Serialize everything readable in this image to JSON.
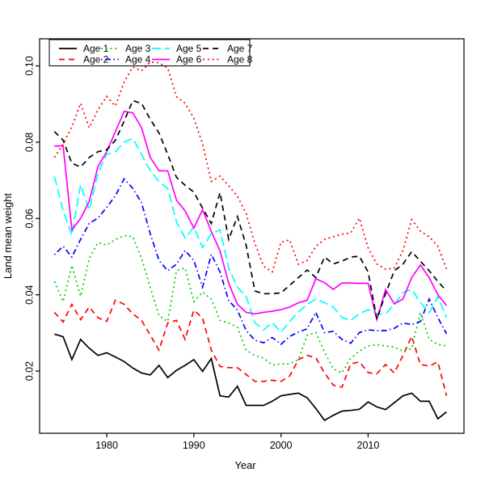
{
  "figure": {
    "background": "#ffffff",
    "xlabel": "Year",
    "ylabel": "Land mean weight"
  },
  "chart_data": {
    "type": "line",
    "title": "",
    "xlabel": "Year",
    "ylabel": "Land mean weight",
    "grid": false,
    "legend_position": "top-left",
    "legend_columns": 4,
    "xlim": [
      1972.3,
      2021.0
    ],
    "ylim": [
      0.0037,
      0.1071
    ],
    "x_ticks": [
      1980,
      1990,
      2000,
      2010
    ],
    "y_ticks": [
      0.02,
      0.04,
      0.06,
      0.08,
      0.1
    ],
    "y_tick_labels": [
      "0.02",
      "0.04",
      "0.06",
      "0.08",
      "0.10"
    ],
    "x": [
      1974,
      1975,
      1976,
      1977,
      1978,
      1979,
      1980,
      1981,
      1982,
      1983,
      1984,
      1985,
      1986,
      1987,
      1988,
      1989,
      1990,
      1991,
      1992,
      1993,
      1994,
      1995,
      1996,
      1997,
      1998,
      1999,
      2000,
      2001,
      2002,
      2003,
      2004,
      2005,
      2006,
      2007,
      2008,
      2009,
      2010,
      2011,
      2012,
      2013,
      2014,
      2015,
      2016,
      2017,
      2018,
      2019
    ],
    "series": [
      {
        "name": "Age 1",
        "color": "#000000",
        "linetype": "solid",
        "values": [
          0.0297,
          0.029,
          0.023,
          0.0283,
          0.026,
          0.0241,
          0.0248,
          0.0237,
          0.0225,
          0.0208,
          0.0195,
          0.019,
          0.0215,
          0.0183,
          0.0202,
          0.0215,
          0.023,
          0.0199,
          0.0233,
          0.0135,
          0.0132,
          0.016,
          0.011,
          0.011,
          0.011,
          0.0121,
          0.0135,
          0.0139,
          0.0142,
          0.013,
          0.0102,
          0.0071,
          0.0084,
          0.0095,
          0.0097,
          0.01,
          0.0119,
          0.0106,
          0.0099,
          0.0117,
          0.0135,
          0.0142,
          0.0121,
          0.0121,
          0.0075,
          0.0093
        ]
      },
      {
        "name": "Age 2",
        "color": "#FF0000",
        "linetype": "dashed",
        "values": [
          0.0354,
          0.0329,
          0.0375,
          0.0335,
          0.0368,
          0.034,
          0.033,
          0.0386,
          0.0375,
          0.035,
          0.0333,
          0.0294,
          0.0255,
          0.0326,
          0.0333,
          0.0283,
          0.036,
          0.0339,
          0.0255,
          0.0212,
          0.0209,
          0.0209,
          0.0191,
          0.0173,
          0.0173,
          0.0176,
          0.0173,
          0.0187,
          0.023,
          0.0241,
          0.0235,
          0.0195,
          0.0163,
          0.0158,
          0.0219,
          0.0224,
          0.0196,
          0.0193,
          0.0217,
          0.0195,
          0.0241,
          0.0291,
          0.0217,
          0.0213,
          0.0224,
          0.0135
        ]
      },
      {
        "name": "Age 3",
        "color": "#00CD00",
        "linetype": "dotted",
        "values": [
          0.0435,
          0.0382,
          0.0477,
          0.0396,
          0.0495,
          0.0537,
          0.053,
          0.0545,
          0.0555,
          0.0552,
          0.0495,
          0.042,
          0.0345,
          0.033,
          0.0463,
          0.047,
          0.0382,
          0.0407,
          0.0389,
          0.0333,
          0.0326,
          0.0315,
          0.0255,
          0.0241,
          0.0234,
          0.0216,
          0.0219,
          0.0219,
          0.023,
          0.0294,
          0.0301,
          0.025,
          0.0206,
          0.0195,
          0.0234,
          0.0252,
          0.0266,
          0.0269,
          0.0266,
          0.0263,
          0.0252,
          0.0259,
          0.0354,
          0.0283,
          0.027,
          0.0266
        ]
      },
      {
        "name": "Age 4",
        "color": "#0000FF",
        "linetype": "dotdash",
        "values": [
          0.0505,
          0.0527,
          0.0499,
          0.0545,
          0.0587,
          0.0601,
          0.0629,
          0.066,
          0.0704,
          0.0679,
          0.0641,
          0.056,
          0.049,
          0.0463,
          0.048,
          0.0516,
          0.049,
          0.042,
          0.0506,
          0.046,
          0.0385,
          0.036,
          0.0306,
          0.0281,
          0.0274,
          0.0288,
          0.027,
          0.0291,
          0.0302,
          0.0311,
          0.0354,
          0.0301,
          0.0304,
          0.0283,
          0.0273,
          0.0301,
          0.0308,
          0.0306,
          0.0306,
          0.0312,
          0.0326,
          0.0322,
          0.033,
          0.0389,
          0.034,
          0.0298
        ]
      },
      {
        "name": "Age 5",
        "color": "#00FFFF",
        "linetype": "longdash",
        "values": [
          0.071,
          0.062,
          0.0556,
          0.0689,
          0.0622,
          0.0718,
          0.0768,
          0.0775,
          0.08,
          0.081,
          0.0768,
          0.0725,
          0.0697,
          0.0679,
          0.0591,
          0.0549,
          0.0577,
          0.0524,
          0.056,
          0.057,
          0.047,
          0.042,
          0.0395,
          0.0327,
          0.0308,
          0.0327,
          0.0302,
          0.033,
          0.0355,
          0.0375,
          0.0389,
          0.0379,
          0.0368,
          0.034,
          0.0333,
          0.035,
          0.0361,
          0.035,
          0.035,
          0.0375,
          0.0406,
          0.0414,
          0.038,
          0.0353,
          0.0396,
          0.034
        ]
      },
      {
        "name": "Age 6",
        "color": "#FF00FF",
        "linetype": "solid",
        "values": [
          0.079,
          0.079,
          0.057,
          0.06,
          0.0645,
          0.0736,
          0.0775,
          0.0828,
          0.0881,
          0.0877,
          0.0838,
          0.076,
          0.0725,
          0.0725,
          0.0648,
          0.062,
          0.0575,
          0.0623,
          0.0566,
          0.0515,
          0.043,
          0.0375,
          0.0354,
          0.035,
          0.0354,
          0.0357,
          0.0361,
          0.0368,
          0.0379,
          0.0386,
          0.0442,
          0.0432,
          0.0414,
          0.0431,
          0.0431,
          0.043,
          0.043,
          0.0335,
          0.0414,
          0.0376,
          0.0389,
          0.0445,
          0.0478,
          0.0445,
          0.04,
          0.0372
        ]
      },
      {
        "name": "Age 7",
        "color": "#000000",
        "linetype": "dashed",
        "values": [
          0.0828,
          0.0805,
          0.0745,
          0.0735,
          0.076,
          0.0775,
          0.078,
          0.0805,
          0.0855,
          0.0909,
          0.0902,
          0.086,
          0.0824,
          0.0768,
          0.0708,
          0.0687,
          0.0669,
          0.0627,
          0.0587,
          0.0668,
          0.0545,
          0.0605,
          0.053,
          0.041,
          0.0403,
          0.0403,
          0.0405,
          0.0425,
          0.0445,
          0.0465,
          0.0445,
          0.0499,
          0.0481,
          0.0488,
          0.0499,
          0.0501,
          0.046,
          0.0336,
          0.0403,
          0.0463,
          0.048,
          0.0513,
          0.0488,
          0.0463,
          0.0435,
          0.041
        ]
      },
      {
        "name": "Age 8",
        "color": "#FF0000",
        "linetype": "dotted",
        "values": [
          0.076,
          0.0795,
          0.084,
          0.0902,
          0.0838,
          0.0885,
          0.092,
          0.0895,
          0.0958,
          0.0997,
          0.0987,
          0.101,
          0.1008,
          0.0994,
          0.0919,
          0.0902,
          0.0863,
          0.0796,
          0.0697,
          0.0711,
          0.0686,
          0.0658,
          0.0613,
          0.0535,
          0.0475,
          0.046,
          0.0538,
          0.0544,
          0.048,
          0.049,
          0.0527,
          0.0545,
          0.0552,
          0.0559,
          0.0562,
          0.0601,
          0.0523,
          0.0481,
          0.0467,
          0.047,
          0.0516,
          0.0597,
          0.0567,
          0.0552,
          0.0527,
          0.0467
        ]
      }
    ]
  }
}
